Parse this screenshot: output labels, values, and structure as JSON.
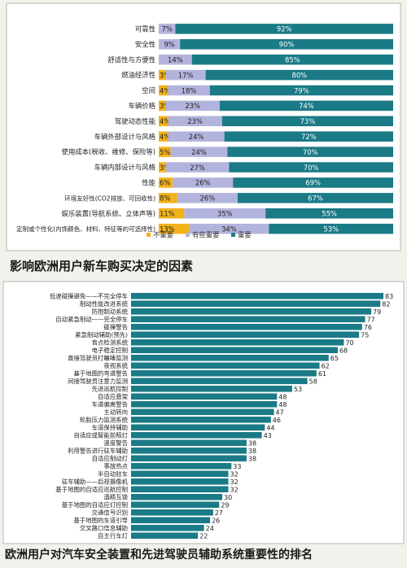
{
  "chart_data": [
    {
      "type": "bar",
      "stacked": true,
      "orientation": "horizontal",
      "title": "影响欧洲用户新车购买决定的因素",
      "categories": [
        "可靠性",
        "安全性",
        "舒适性与方便性",
        "燃油经济性",
        "空间",
        "车辆价格",
        "驾驶动态性能",
        "车辆外部设计与风格",
        "使用成本(税收、维修、保险等)",
        "车辆内部设计与风格",
        "性能",
        "环境友好性(CO2排放、可回收性)",
        "娱乐装置(导航系统、立体声等)",
        "定制或个性化(内饰颜色、材料、特征等的可选择性)"
      ],
      "series": [
        {
          "name": "不重要",
          "color": "#f2b21a",
          "values": [
            0,
            0,
            0,
            3,
            4,
            3,
            4,
            4,
            5,
            3,
            6,
            8,
            11,
            13
          ]
        },
        {
          "name": "有些重要",
          "color": "#b3b4dd",
          "values": [
            7,
            9,
            14,
            17,
            18,
            23,
            23,
            24,
            24,
            27,
            26,
            26,
            35,
            34
          ]
        },
        {
          "name": "重要",
          "color": "#1a7a86",
          "values": [
            92,
            90,
            85,
            80,
            79,
            74,
            73,
            72,
            70,
            70,
            69,
            67,
            55,
            53
          ]
        }
      ],
      "legend": "bottom"
    },
    {
      "type": "bar",
      "orientation": "horizontal",
      "title": "欧洲用户对汽车安全装置和先进驾驶员辅助系统重要性的排名",
      "color": "#1a7a86",
      "categories": [
        "低速碰撞避免——不完全停车",
        "制动性能改进系统",
        "防抱制动系统",
        "自动紧急制动——完全停车",
        "碰撞警告",
        "紧急制动辅助(预先)",
        "盲点检测系统",
        "电子稳定控制",
        "直接驾驶员打瞌睡监测",
        "夜视系统",
        "基于地图的弯道警告",
        "间接驾驶员注意力监测",
        "先进巡航控制",
        "自适应悬架",
        "车道偏离警告",
        "主动转向",
        "轮胎压力监测系统",
        "车道保持辅助",
        "自适应或智能前照灯",
        "速度警告",
        "利用警告进行驻车辅助",
        "自适应制动灯",
        "事故热点",
        "半自动驻车",
        "驻车辅助——后视摄像机",
        "基于地图的自适应巡航控制",
        "酒精互锁",
        "基于地图的自适应灯控制",
        "交通信号识别",
        "基于地图的车道引导",
        "交叉路口信息辅助",
        "自主行车灯"
      ],
      "values": [
        83,
        82,
        79,
        77,
        76,
        75,
        70,
        68,
        65,
        62,
        61,
        58,
        53,
        48,
        48,
        47,
        46,
        44,
        43,
        38,
        38,
        38,
        33,
        32,
        32,
        32,
        30,
        29,
        27,
        26,
        24,
        22
      ]
    }
  ]
}
